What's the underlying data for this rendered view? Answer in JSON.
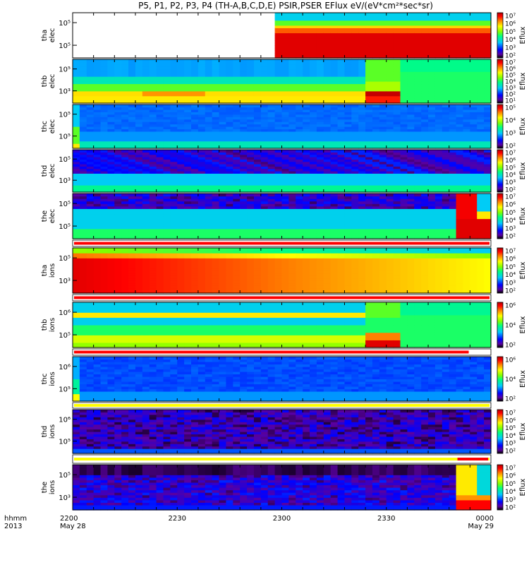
{
  "title": "P5, P1, P2, P3, P4 (TH-A,B,C,D,E) PSIR,PSER EFlux eV/(eV*cm²*sec*sr)",
  "colorbar_label": "Eflux",
  "time_axis": {
    "ticks": [
      "2200",
      "2230",
      "2300",
      "2330",
      "0000"
    ],
    "dates": [
      "May 28",
      "May 29"
    ],
    "left_label_top": "hhmm",
    "left_label_bottom": "2013"
  },
  "chart_data": [
    {
      "type": "heatmap",
      "probe": "tha",
      "species": "elec",
      "ylabel": [
        "tha",
        "elec"
      ],
      "y_ticks": [
        "10⁵",
        "10⁵"
      ],
      "cb_ticks": [
        "10⁷",
        "10⁶",
        "10⁵",
        "10⁴",
        "10³",
        "10²"
      ],
      "data_start_fraction": 0.49,
      "profile": "tha_e"
    },
    {
      "type": "heatmap",
      "probe": "thb",
      "species": "elec",
      "ylabel": [
        "thb",
        "elec"
      ],
      "y_ticks": [
        "10⁵",
        "10³"
      ],
      "cb_ticks": [
        "10⁷",
        "10⁶",
        "10⁵",
        "10⁴",
        "10³",
        "10²",
        "10¹"
      ],
      "profile": "thb_e"
    },
    {
      "type": "heatmap",
      "probe": "thc",
      "species": "elec",
      "ylabel": [
        "thc",
        "elec"
      ],
      "y_ticks": [
        "10⁵",
        "10⁵"
      ],
      "cb_ticks": [
        "10⁵",
        "10⁴",
        "10³",
        "10²"
      ],
      "profile": "thc_e"
    },
    {
      "type": "heatmap",
      "probe": "thd",
      "species": "elec",
      "ylabel": [
        "thd",
        "elec"
      ],
      "y_ticks": [
        "10⁵",
        "10³"
      ],
      "cb_ticks": [
        "10⁷",
        "10⁶",
        "10⁵",
        "10⁴",
        "10³",
        "10²"
      ],
      "profile": "thd_e"
    },
    {
      "type": "heatmap",
      "probe": "the",
      "species": "elec",
      "ylabel": [
        "the",
        "elec"
      ],
      "y_ticks": [
        "10⁵",
        "10⁵"
      ],
      "cb_ticks": [
        "10⁷",
        "10⁶",
        "10⁵",
        "10⁴",
        "10³",
        "10²"
      ],
      "profile": "the_e"
    },
    {
      "type": "heatmap",
      "probe": "tha",
      "species": "ions",
      "ylabel": [
        "tha",
        "ions"
      ],
      "y_ticks": [
        "10⁵",
        "10³"
      ],
      "cb_ticks": [
        "10⁷",
        "10⁶",
        "10⁵",
        "10⁴",
        "10³",
        "10²"
      ],
      "profile": "tha_i"
    },
    {
      "type": "heatmap",
      "probe": "thb",
      "species": "ions",
      "ylabel": [
        "thb",
        "ions"
      ],
      "y_ticks": [
        "10⁶",
        "10⁵"
      ],
      "cb_ticks": [
        "10⁶",
        "10⁴",
        "10²"
      ],
      "profile": "thb_i"
    },
    {
      "type": "heatmap",
      "probe": "thc",
      "species": "ions",
      "ylabel": [
        "thc",
        "ions"
      ],
      "y_ticks": [
        "10⁶",
        "10⁵"
      ],
      "cb_ticks": [
        "10⁶",
        "10⁴",
        "10²"
      ],
      "profile": "thc_i"
    },
    {
      "type": "heatmap",
      "probe": "thd",
      "species": "ions",
      "ylabel": [
        "thd",
        "ions"
      ],
      "y_ticks": [
        "10⁶",
        "10⁵"
      ],
      "cb_ticks": [
        "10⁷",
        "10⁶",
        "10⁵",
        "10⁴",
        "10³",
        "10²"
      ],
      "profile": "thd_i"
    },
    {
      "type": "heatmap",
      "probe": "the",
      "species": "ions",
      "ylabel": [
        "the",
        "ions"
      ],
      "y_ticks": [
        "10⁵",
        "10³"
      ],
      "cb_ticks": [
        "10⁷",
        "10⁶",
        "10⁵",
        "10⁴",
        "10³",
        "10²"
      ],
      "profile": "the_i"
    }
  ],
  "flag_bars": [
    {
      "after_panel": 4,
      "color": "#ff0000"
    },
    {
      "after_panel": 5,
      "color": "#ff0000"
    },
    {
      "after_panel": 6,
      "color": "#ff0000",
      "end_fraction": 0.95
    },
    {
      "after_panel": 7,
      "color": "#ffff00"
    },
    {
      "after_panel": 8,
      "color": "#ffff00",
      "red_from_fraction": 0.92
    }
  ]
}
